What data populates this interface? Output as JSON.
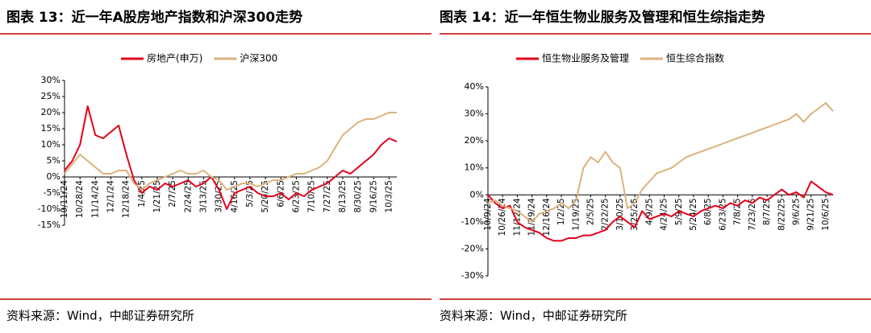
{
  "chart_data": [
    {
      "type": "line",
      "title": "图表 13：近一年A股房地产指数和沪深300走势",
      "categories": [
        "10/11/24",
        null,
        "10/28/24",
        null,
        "11/14/24",
        null,
        "12/1/24",
        null,
        "12/18/24",
        null,
        "1/4/25",
        null,
        "1/21/25",
        null,
        "2/7/25",
        null,
        "2/24/25",
        null,
        "3/13/25",
        null,
        "3/30/25",
        null,
        "4/16/25",
        null,
        "5/3/25",
        null,
        "5/20/25",
        null,
        "6/6/25",
        null,
        "6/23/25",
        null,
        "7/10/25",
        null,
        "7/27/25",
        null,
        "8/13/25",
        null,
        "8/30/25",
        null,
        "9/16/25",
        null,
        "10/3/25",
        null
      ],
      "series": [
        {
          "name": "房地产(申万)",
          "color": "#e3001b",
          "values": [
            2,
            5,
            10,
            22,
            13,
            12,
            14,
            16,
            7,
            -1,
            -5,
            -3,
            -4,
            -2,
            -3,
            -2,
            -1,
            -3,
            -2,
            0,
            -4,
            -10,
            -5,
            -4,
            -3,
            -5,
            -6,
            -6,
            -5,
            -7,
            -5,
            -6,
            -4,
            -3,
            -2,
            0,
            2,
            1,
            3,
            5,
            7,
            10,
            12,
            11
          ]
        },
        {
          "name": "沪深300",
          "color": "#dbb27d",
          "values": [
            1,
            4,
            7,
            5,
            3,
            1,
            1,
            2,
            2,
            -2,
            -4,
            -2,
            -1,
            0,
            1,
            2,
            1,
            1,
            2,
            0,
            -1,
            -4,
            -3,
            -2,
            -2,
            -3,
            -2,
            -1,
            -1,
            0,
            1,
            1,
            2,
            3,
            5,
            9,
            13,
            15,
            17,
            18,
            18,
            19,
            20,
            20
          ]
        }
      ],
      "ylim": [
        -15,
        30
      ],
      "yticks": [
        {
          "value": -15,
          "label": "-15%"
        },
        {
          "value": -10,
          "label": "-10%"
        },
        {
          "value": -5,
          "label": "-5%"
        },
        {
          "value": 0,
          "label": "0%"
        },
        {
          "value": 5,
          "label": "5%"
        },
        {
          "value": 10,
          "label": "10%"
        },
        {
          "value": 15,
          "label": "15%"
        },
        {
          "value": 20,
          "label": "20%"
        },
        {
          "value": 25,
          "label": "25%"
        },
        {
          "value": 30,
          "label": "30%"
        }
      ],
      "grid": false,
      "legend": "top"
    },
    {
      "type": "line",
      "title": "图表 14：近一年恒生物业服务及管理和恒生综指走势",
      "categories": [
        "10/9/24",
        null,
        "10/26/24",
        null,
        "11/12/24",
        null,
        "11/29/24",
        null,
        "12/16/24",
        null,
        "1/2/25",
        null,
        "1/19/25",
        null,
        "2/5/25",
        null,
        "2/22/25",
        null,
        "3/10/25",
        null,
        "3/25/25",
        null,
        "4/9/25",
        null,
        "4/24/25",
        null,
        "5/9/25",
        null,
        "5/24/25",
        null,
        "6/8/25",
        null,
        "6/23/25",
        null,
        "7/8/25",
        null,
        "7/23/25",
        null,
        "8/7/25",
        null,
        "8/22/25",
        null,
        "9/6/25",
        null,
        "9/21/25",
        null,
        "10/6/25",
        null
      ],
      "series": [
        {
          "name": "恒生物业服务及管理",
          "color": "#e3001b",
          "values": [
            0,
            -3,
            -5,
            -4,
            -10,
            -12,
            -13,
            -14,
            -16,
            -17,
            -17,
            -16,
            -16,
            -15,
            -15,
            -14,
            -13,
            -10,
            -8,
            -10,
            -12,
            -6,
            -9,
            -8,
            -7,
            -8,
            -6,
            -7,
            -8,
            -6,
            -5,
            -4,
            -5,
            -3,
            -4,
            -2,
            -3,
            -1,
            -2,
            0,
            2,
            0,
            1,
            -1,
            5,
            3,
            1,
            0
          ]
        },
        {
          "name": "恒生综合指数",
          "color": "#dbb27d",
          "values": [
            -3,
            -2,
            -4,
            -5,
            -6,
            -8,
            -10,
            -7,
            -6,
            -5,
            -3,
            -5,
            -2,
            10,
            14,
            12,
            16,
            12,
            10,
            -5,
            -3,
            2,
            5,
            8,
            9,
            10,
            12,
            14,
            15,
            16,
            17,
            18,
            19,
            20,
            21,
            22,
            23,
            24,
            25,
            26,
            27,
            28,
            30,
            27,
            30,
            32,
            34,
            31
          ]
        }
      ],
      "ylim": [
        -30,
        40
      ],
      "yticks": [
        {
          "value": -30,
          "label": "-30%"
        },
        {
          "value": -20,
          "label": "-20%"
        },
        {
          "value": -10,
          "label": "-10%"
        },
        {
          "value": 0,
          "label": "0%"
        },
        {
          "value": 10,
          "label": "10%"
        },
        {
          "value": 20,
          "label": "20%"
        },
        {
          "value": 30,
          "label": "30%"
        },
        {
          "value": 40,
          "label": "40%"
        }
      ],
      "grid": false,
      "legend": "top"
    }
  ],
  "footer": [
    "资料来源：Wind，中邮证券研究所",
    "资料来源：Wind，中邮证券研究所"
  ]
}
